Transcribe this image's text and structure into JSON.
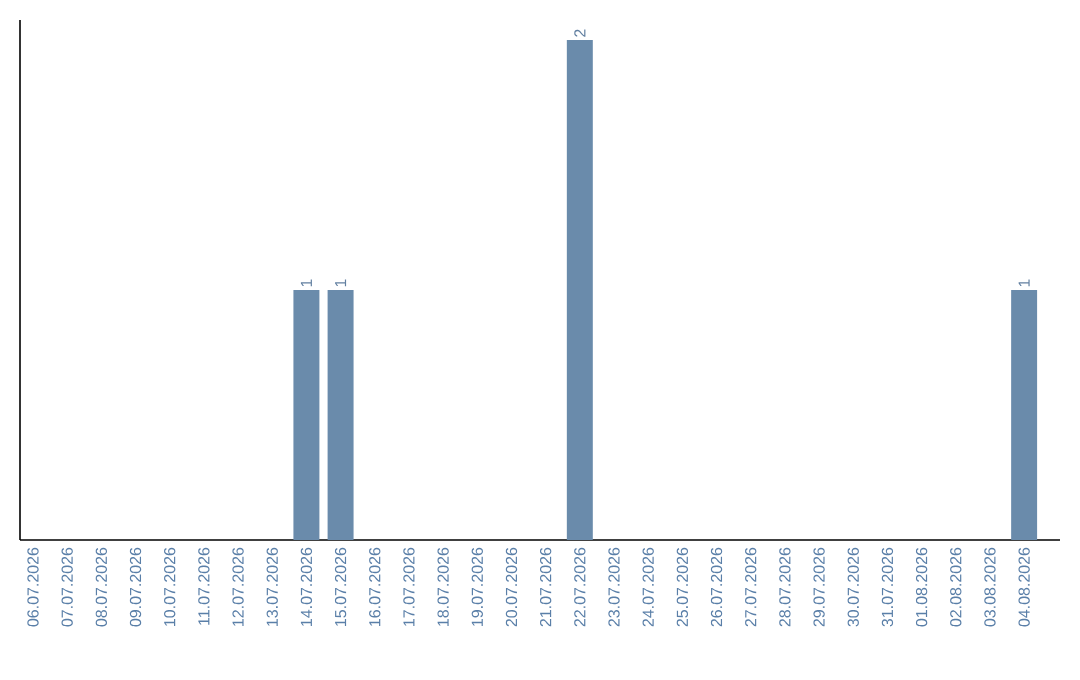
{
  "chart_data": {
    "type": "bar",
    "categories": [
      "06.07.2026",
      "07.07.2026",
      "08.07.2026",
      "09.07.2026",
      "10.07.2026",
      "11.07.2026",
      "12.07.2026",
      "13.07.2026",
      "14.07.2026",
      "15.07.2026",
      "16.07.2026",
      "17.07.2026",
      "18.07.2026",
      "19.07.2026",
      "20.07.2026",
      "21.07.2026",
      "22.07.2026",
      "23.07.2026",
      "24.07.2026",
      "25.07.2026",
      "26.07.2026",
      "27.07.2026",
      "28.07.2026",
      "29.07.2026",
      "30.07.2026",
      "31.07.2026",
      "01.08.2026",
      "02.08.2026",
      "03.08.2026",
      "04.08.2026"
    ],
    "values": [
      0,
      0,
      0,
      0,
      0,
      0,
      0,
      0,
      1,
      1,
      0,
      0,
      0,
      0,
      0,
      0,
      2,
      0,
      0,
      0,
      0,
      0,
      0,
      0,
      0,
      0,
      0,
      0,
      0,
      1
    ],
    "value_labels": [
      null,
      null,
      null,
      null,
      null,
      null,
      null,
      null,
      "1",
      "1",
      null,
      null,
      null,
      null,
      null,
      null,
      "2",
      null,
      null,
      null,
      null,
      null,
      null,
      null,
      null,
      null,
      null,
      null,
      null,
      "1"
    ],
    "color": "#6a8bab",
    "ylim": [
      0,
      2.08
    ],
    "tick_labels": "x"
  }
}
